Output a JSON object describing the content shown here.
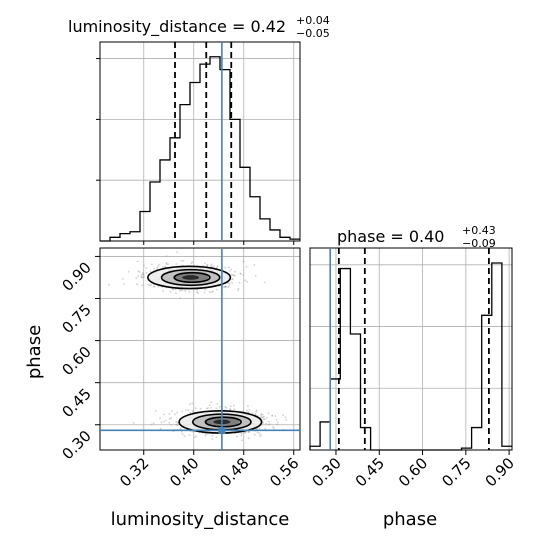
{
  "chart_data": {
    "type": "corner",
    "parameters": [
      "luminosity_distance",
      "phase"
    ],
    "truth": {
      "luminosity_distance": 0.445,
      "phase": 0.28
    },
    "panels": [
      {
        "kind": "histogram",
        "parameter": "luminosity_distance",
        "title_name": "luminosity_distance",
        "title_value": "0.42",
        "title_plus": "+0.04",
        "title_minus": "−0.05",
        "quantiles": [
          0.37,
          0.42,
          0.46
        ],
        "xlim": [
          0.25,
          0.57
        ],
        "bins": {
          "edges": [
            0.25,
            0.266,
            0.282,
            0.298,
            0.314,
            0.33,
            0.346,
            0.362,
            0.378,
            0.394,
            0.41,
            0.426,
            0.442,
            0.458,
            0.474,
            0.49,
            0.506,
            0.522,
            0.538,
            0.554,
            0.57
          ],
          "heights": [
            0.0,
            0.02,
            0.04,
            0.05,
            0.16,
            0.32,
            0.44,
            0.56,
            0.74,
            0.86,
            0.96,
            1.0,
            0.93,
            0.66,
            0.4,
            0.24,
            0.12,
            0.06,
            0.02,
            0.01
          ]
        }
      },
      {
        "kind": "histogram",
        "parameter": "phase",
        "title_name": "phase",
        "title_value": "0.40",
        "title_plus": "+0.43",
        "title_minus": "−0.09",
        "quantiles": [
          0.31,
          0.4,
          0.83
        ],
        "xlim": [
          0.21,
          0.91
        ],
        "bins": {
          "edges": [
            0.21,
            0.245,
            0.28,
            0.315,
            0.35,
            0.385,
            0.42,
            0.455,
            0.49,
            0.525,
            0.56,
            0.595,
            0.63,
            0.665,
            0.7,
            0.735,
            0.77,
            0.805,
            0.84,
            0.875,
            0.91
          ],
          "heights": [
            0.02,
            0.15,
            0.38,
            0.97,
            0.62,
            0.12,
            0.0,
            0.0,
            0.0,
            0.0,
            0.0,
            0.0,
            0.0,
            0.0,
            0.0,
            0.01,
            0.12,
            0.72,
            1.0,
            0.02
          ]
        }
      },
      {
        "kind": "2d",
        "x": "luminosity_distance",
        "y": "phase",
        "xlim": [
          0.25,
          0.57
        ],
        "ylim": [
          0.21,
          0.93
        ],
        "modes": [
          {
            "center": [
              0.395,
              0.825
            ],
            "spread": [
              0.03,
              0.018
            ]
          },
          {
            "center": [
              0.445,
              0.31
            ],
            "spread": [
              0.03,
              0.018
            ]
          }
        ]
      }
    ],
    "axes": {
      "luminosity_distance": {
        "label": "luminosity_distance",
        "ticks": [
          "0.32",
          "0.40",
          "0.48",
          "0.56"
        ],
        "tick_values": [
          0.32,
          0.4,
          0.48,
          0.56
        ]
      },
      "phase": {
        "label": "phase",
        "ticks": [
          "0.30",
          "0.45",
          "0.60",
          "0.75",
          "0.90"
        ],
        "tick_values": [
          0.3,
          0.45,
          0.6,
          0.75,
          0.9
        ]
      }
    },
    "grid": true,
    "colors": {
      "truth": "#4682b4",
      "hist": "#000000",
      "contour_fill": "#555555"
    }
  }
}
